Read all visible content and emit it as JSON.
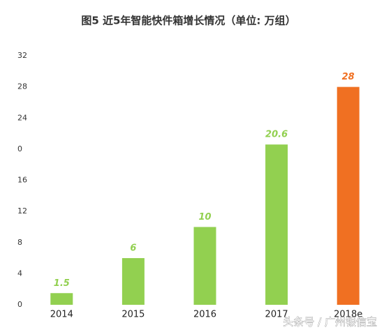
{
  "chart_data": {
    "type": "bar",
    "title": "图5  近5年智能快件箱增长情况（单位: 万组）",
    "categories": [
      "2014",
      "2015",
      "2016",
      "2017",
      "2018e"
    ],
    "values": [
      1.5,
      6,
      10,
      20.6,
      28
    ],
    "colors": [
      "#92d050",
      "#92d050",
      "#92d050",
      "#92d050",
      "#f07022"
    ],
    "ylim": [
      0,
      32
    ],
    "yticks": [
      0,
      4,
      8,
      12,
      16,
      {
        "value": 20,
        "label": "0"
      },
      24,
      28,
      32
    ],
    "grid": false,
    "watermark": "头条号 / 广州银信宝"
  }
}
